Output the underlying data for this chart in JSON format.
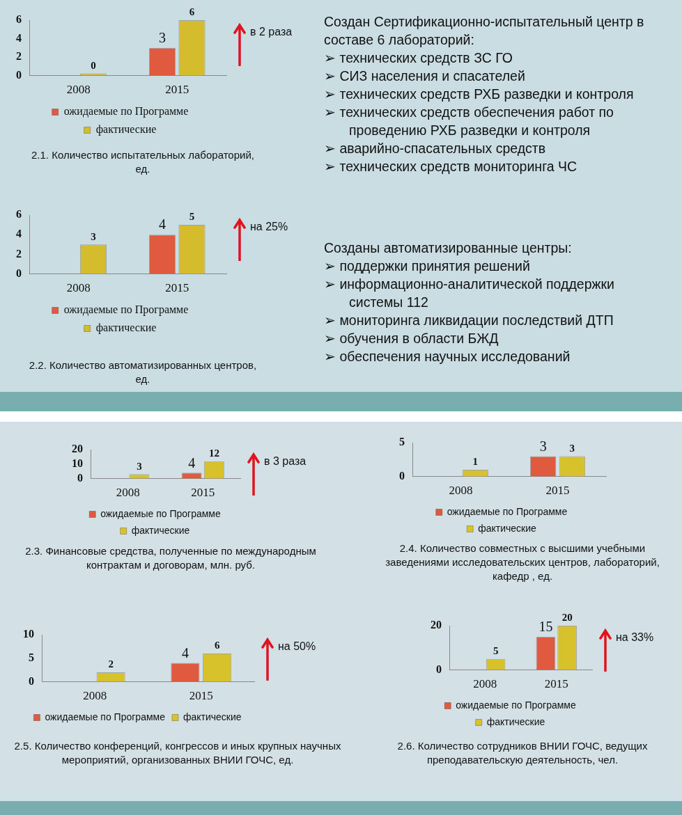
{
  "chart_data": [
    {
      "type": "bar",
      "title": "2.1. Количество испытательных лабораторий, ед.",
      "categories": [
        "2008",
        "2015"
      ],
      "series": [
        {
          "name": "ожидаемые по Программе",
          "color": "#e05a40",
          "values": [
            null,
            3
          ]
        },
        {
          "name": "фактические",
          "color": "#d4bc2c",
          "values": [
            0,
            6
          ]
        }
      ],
      "ylim": [
        0,
        6
      ],
      "yticks": [
        0,
        2,
        4,
        6
      ],
      "grid": false,
      "legend": "bottom",
      "data_labels": true,
      "annotations": [
        "в 2 раза"
      ]
    },
    {
      "type": "other",
      "title": "Создан Сертификационно-испытательный центр в составе 6 лабораторий:",
      "annotations": [
        "➢ технических средств ЗС ГО",
        "➢ СИЗ населения и спасателей",
        "➢ технических средств РХБ разведки и контроля",
        "➢ технических средств обеспечения работ по проведению РХБ разведки и контроля",
        "➢ аварийно-спасательных средств",
        "➢  технических средств мониторинга ЧС"
      ]
    },
    {
      "type": "bar",
      "title": "2.2. Количество автоматизированных центров, ед.",
      "categories": [
        "2008",
        "2015"
      ],
      "series": [
        {
          "name": "ожидаемые по Программе",
          "color": "#e05a40",
          "values": [
            null,
            4
          ]
        },
        {
          "name": "фактические",
          "color": "#d4bc2c",
          "values": [
            3,
            5
          ]
        }
      ],
      "ylim": [
        0,
        6
      ],
      "yticks": [
        0,
        2,
        4,
        6
      ],
      "grid": false,
      "legend": "bottom",
      "data_labels": true,
      "annotations": [
        "на 25%"
      ]
    },
    {
      "type": "other",
      "title": "Созданы автоматизированные центры:",
      "annotations": [
        "➢ поддержки принятия решений",
        "➢ информационно-аналитической поддержки системы 112",
        "➢ мониторинга ликвидации последствий ДТП",
        "➢ обучения в области БЖД",
        "➢ обеспечения научных исследований"
      ]
    },
    {
      "type": "bar",
      "title": "2.3. Финансовые   средства,   полученные по международным контрактам и договорам, млн. руб.",
      "categories": [
        "2008",
        "2015"
      ],
      "series": [
        {
          "name": "ожидаемые по Программе",
          "color": "#e05a40",
          "values": [
            null,
            4
          ]
        },
        {
          "name": "фактические",
          "color": "#d8c22c",
          "values": [
            3,
            12
          ]
        }
      ],
      "ylim": [
        0,
        20
      ],
      "yticks": [
        0,
        10,
        20
      ],
      "grid": false,
      "legend": "bottom",
      "data_labels": true,
      "annotations": [
        "в 3 раза"
      ]
    },
    {
      "type": "bar",
      "title": "2.4. Количество совместных с высшими учебными заведениями исследовательских центров, лабораторий, кафедр , ед.",
      "categories": [
        "2008",
        "2015"
      ],
      "series": [
        {
          "name": "ожидаемые по Программе",
          "color": "#e05a40",
          "values": [
            null,
            3
          ]
        },
        {
          "name": "фактические",
          "color": "#d8c22c",
          "values": [
            1,
            3
          ]
        }
      ],
      "ylim": [
        0,
        5
      ],
      "yticks": [
        0,
        5
      ],
      "grid": false,
      "legend": "bottom",
      "data_labels": true
    },
    {
      "type": "bar",
      "title": "2.5. Количество конференций, конгрессов и иных крупных научных мероприятий, организованных ВНИИ ГОЧС, ед.",
      "categories": [
        "2008",
        "2015"
      ],
      "series": [
        {
          "name": "ожидаемые по Программе",
          "color": "#e05a40",
          "values": [
            null,
            4
          ]
        },
        {
          "name": "фактические",
          "color": "#d8c22c",
          "values": [
            2,
            6
          ]
        }
      ],
      "ylim": [
        0,
        10
      ],
      "yticks": [
        0,
        5,
        10
      ],
      "grid": false,
      "legend": "bottom",
      "data_labels": true,
      "annotations": [
        "на 50%"
      ]
    },
    {
      "type": "bar",
      "title": "2.6. Количество сотрудников ВНИИ ГОЧС, ведущих преподавательскую деятельность, чел.",
      "categories": [
        "2008",
        "2015"
      ],
      "series": [
        {
          "name": "ожидаемые по Программе",
          "color": "#e05a40",
          "values": [
            null,
            15
          ]
        },
        {
          "name": "фактические",
          "color": "#d8c22c",
          "values": [
            5,
            20
          ]
        }
      ],
      "ylim": [
        0,
        20
      ],
      "yticks": [
        0,
        20
      ],
      "grid": false,
      "legend": "bottom",
      "data_labels": true,
      "annotations": [
        "на 33%"
      ]
    }
  ]
}
